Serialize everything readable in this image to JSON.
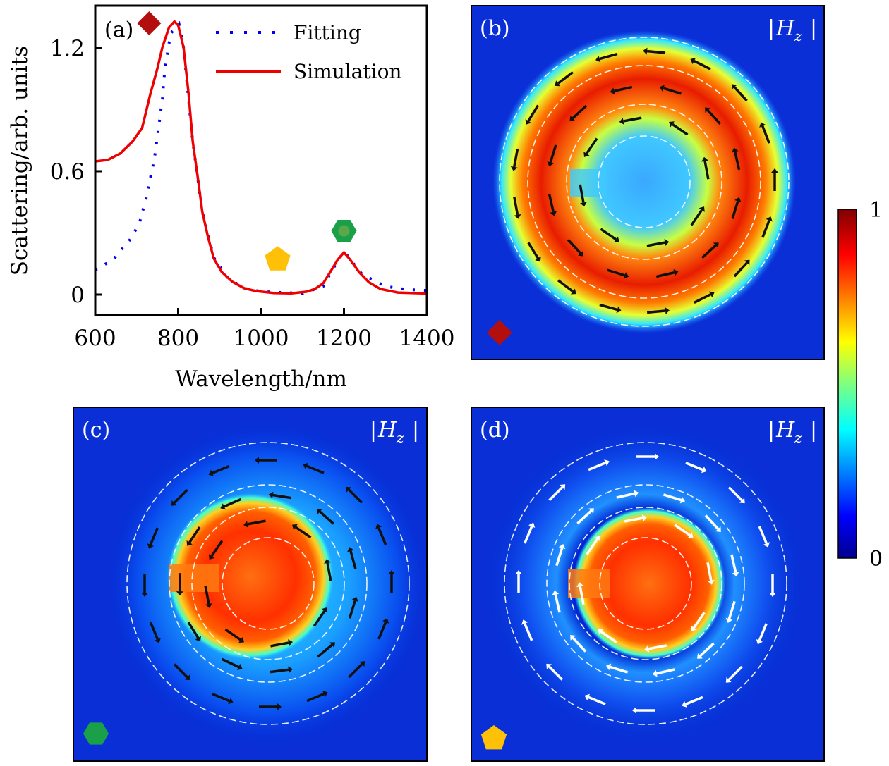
{
  "chart_data": [
    {
      "panel": "(a)",
      "type": "line",
      "xlabel": "Wavelength/nm",
      "ylabel": "Scattering/arb. units",
      "xlim": [
        600,
        1400
      ],
      "ylim": [
        0,
        1.32
      ],
      "xticks": [
        600,
        800,
        1000,
        1200,
        1400
      ],
      "yticks": [
        0,
        0.6,
        1.2
      ],
      "ytick_labels": [
        "0",
        "0.6",
        "1.2"
      ],
      "grid": false,
      "legend_placement": "top-right",
      "series": [
        {
          "name": "Fitting",
          "style": "dotted",
          "color": "#0000ee",
          "x": [
            600,
            643,
            683,
            706,
            723,
            743,
            748,
            762,
            768,
            782,
            802,
            813,
            835,
            858,
            886,
            920,
            960,
            1000,
            1050,
            1102,
            1150,
            1175,
            1200,
            1243,
            1300,
            1350,
            1400
          ],
          "y": [
            0.12,
            0.17,
            0.265,
            0.344,
            0.47,
            0.665,
            0.74,
            0.952,
            1.1,
            1.27,
            1.316,
            1.204,
            0.747,
            0.405,
            0.18,
            0.08,
            0.03,
            0.015,
            0.01,
            0.006,
            0.04,
            0.13,
            0.21,
            0.1,
            0.04,
            0.025,
            0.02
          ]
        },
        {
          "name": "Simulation",
          "style": "solid",
          "color": "#ee0000",
          "x": [
            600,
            630,
            660,
            690,
            713,
            733,
            750,
            762,
            778,
            791,
            800,
            813,
            825,
            835,
            848,
            858,
            872,
            886,
            905,
            931,
            960,
            988,
            1030,
            1073,
            1110,
            1130,
            1150,
            1170,
            1185,
            1200,
            1215,
            1237,
            1260,
            1288,
            1330,
            1400
          ],
          "y": [
            0.648,
            0.655,
            0.686,
            0.745,
            0.81,
            0.976,
            1.1,
            1.204,
            1.3,
            1.328,
            1.31,
            1.204,
            0.98,
            0.747,
            0.56,
            0.405,
            0.28,
            0.176,
            0.11,
            0.062,
            0.03,
            0.017,
            0.008,
            0.006,
            0.014,
            0.027,
            0.055,
            0.12,
            0.17,
            0.205,
            0.17,
            0.108,
            0.06,
            0.027,
            0.01,
            0.005
          ]
        }
      ],
      "markers": [
        {
          "shape": "diamond",
          "color": "#b30f0f",
          "x": 730,
          "y": 1.32
        },
        {
          "shape": "pentagon",
          "color": "#ffc107",
          "x": 1040,
          "y": 0.17
        },
        {
          "shape": "hexagon",
          "color": "#1aa048",
          "x": 1200,
          "y": 0.31
        }
      ]
    },
    {
      "panel": "(b)",
      "type": "heatmap",
      "quantity": "|H_z|",
      "marker": "diamond",
      "arrow_color": "#111111"
    },
    {
      "panel": "(c)",
      "type": "heatmap",
      "quantity": "|H_z|",
      "marker": "hexagon",
      "arrow_color": "#111111"
    },
    {
      "panel": "(d)",
      "type": "heatmap",
      "quantity": "|H_z|",
      "marker": "pentagon",
      "arrow_color": "#ffffff"
    }
  ],
  "labels": {
    "a": "(a)",
    "b": "(b)",
    "c": "(c)",
    "d": "(d)",
    "hz_bar1": "|",
    "hz_H": "H",
    "hz_sub": "z",
    "hz_bar2": "|"
  },
  "colorbar": {
    "colormap": "jet",
    "max_label": "1",
    "min_label": "0",
    "range": [
      0,
      1
    ]
  }
}
